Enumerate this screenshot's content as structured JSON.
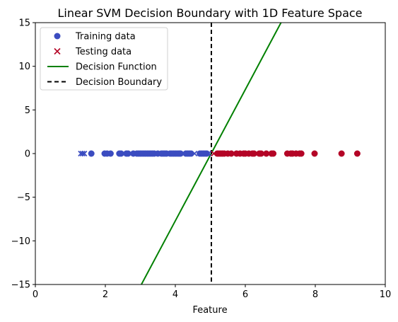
{
  "chart_data": {
    "type": "scatter",
    "title": "Linear SVM Decision Boundary with 1D Feature Space",
    "xlabel": "Feature",
    "ylabel": "",
    "xlim": [
      0,
      10
    ],
    "ylim": [
      -15,
      15
    ],
    "xticks": [
      0,
      2,
      4,
      6,
      8,
      10
    ],
    "xtick_labels": [
      "0",
      "2",
      "4",
      "6",
      "8",
      "10"
    ],
    "yticks": [
      -15,
      -10,
      -5,
      0,
      5,
      10,
      15
    ],
    "ytick_labels": [
      "−15",
      "−10",
      "−5",
      "0",
      "5",
      "10",
      "15"
    ],
    "grid": false,
    "legend": {
      "placement": "upper-left",
      "entries": [
        {
          "label": "Training data",
          "marker": "circle",
          "color": "#3b4cc0"
        },
        {
          "label": "Testing data",
          "marker": "x",
          "color": "#b40426"
        },
        {
          "label": "Decision Function",
          "marker": "line",
          "color": "#008000"
        },
        {
          "label": "Decision Boundary",
          "marker": "dashed-line",
          "color": "#000000"
        }
      ]
    },
    "colors": {
      "class0": "#3b4cc0",
      "class1": "#b40426",
      "decision_function": "#008000",
      "decision_boundary": "#000000"
    },
    "series": [
      {
        "name": "Training data",
        "marker": "circle",
        "points": [
          {
            "x": 1.6,
            "y": 0,
            "cls": 0
          },
          {
            "x": 1.98,
            "y": 0,
            "cls": 0
          },
          {
            "x": 2.05,
            "y": 0,
            "cls": 0
          },
          {
            "x": 2.15,
            "y": 0,
            "cls": 0
          },
          {
            "x": 2.4,
            "y": 0,
            "cls": 0
          },
          {
            "x": 2.45,
            "y": 0,
            "cls": 0
          },
          {
            "x": 2.6,
            "y": 0,
            "cls": 0
          },
          {
            "x": 2.65,
            "y": 0,
            "cls": 0
          },
          {
            "x": 2.8,
            "y": 0,
            "cls": 0
          },
          {
            "x": 2.9,
            "y": 0,
            "cls": 0
          },
          {
            "x": 2.95,
            "y": 0,
            "cls": 0
          },
          {
            "x": 3.0,
            "y": 0,
            "cls": 0
          },
          {
            "x": 3.05,
            "y": 0,
            "cls": 0
          },
          {
            "x": 3.1,
            "y": 0,
            "cls": 0
          },
          {
            "x": 3.15,
            "y": 0,
            "cls": 0
          },
          {
            "x": 3.2,
            "y": 0,
            "cls": 0
          },
          {
            "x": 3.25,
            "y": 0,
            "cls": 0
          },
          {
            "x": 3.3,
            "y": 0,
            "cls": 0
          },
          {
            "x": 3.35,
            "y": 0,
            "cls": 0
          },
          {
            "x": 3.4,
            "y": 0,
            "cls": 0
          },
          {
            "x": 3.5,
            "y": 0,
            "cls": 0
          },
          {
            "x": 3.6,
            "y": 0,
            "cls": 0
          },
          {
            "x": 3.65,
            "y": 0,
            "cls": 0
          },
          {
            "x": 3.7,
            "y": 0,
            "cls": 0
          },
          {
            "x": 3.75,
            "y": 0,
            "cls": 0
          },
          {
            "x": 3.85,
            "y": 0,
            "cls": 0
          },
          {
            "x": 3.9,
            "y": 0,
            "cls": 0
          },
          {
            "x": 3.95,
            "y": 0,
            "cls": 0
          },
          {
            "x": 4.0,
            "y": 0,
            "cls": 0
          },
          {
            "x": 4.05,
            "y": 0,
            "cls": 0
          },
          {
            "x": 4.1,
            "y": 0,
            "cls": 0
          },
          {
            "x": 4.15,
            "y": 0,
            "cls": 0
          },
          {
            "x": 4.3,
            "y": 0,
            "cls": 0
          },
          {
            "x": 4.35,
            "y": 0,
            "cls": 0
          },
          {
            "x": 4.4,
            "y": 0,
            "cls": 0
          },
          {
            "x": 4.45,
            "y": 0,
            "cls": 0
          },
          {
            "x": 4.7,
            "y": 0,
            "cls": 0
          },
          {
            "x": 4.75,
            "y": 0,
            "cls": 0
          },
          {
            "x": 4.8,
            "y": 0,
            "cls": 0
          },
          {
            "x": 4.85,
            "y": 0,
            "cls": 0
          },
          {
            "x": 4.9,
            "y": 0,
            "cls": 0
          },
          {
            "x": 5.2,
            "y": 0,
            "cls": 1
          },
          {
            "x": 5.25,
            "y": 0,
            "cls": 1
          },
          {
            "x": 5.3,
            "y": 0,
            "cls": 1
          },
          {
            "x": 5.35,
            "y": 0,
            "cls": 1
          },
          {
            "x": 5.4,
            "y": 0,
            "cls": 1
          },
          {
            "x": 5.5,
            "y": 0,
            "cls": 1
          },
          {
            "x": 5.6,
            "y": 0,
            "cls": 1
          },
          {
            "x": 5.75,
            "y": 0,
            "cls": 1
          },
          {
            "x": 5.85,
            "y": 0,
            "cls": 1
          },
          {
            "x": 5.95,
            "y": 0,
            "cls": 1
          },
          {
            "x": 6.0,
            "y": 0,
            "cls": 1
          },
          {
            "x": 6.1,
            "y": 0,
            "cls": 1
          },
          {
            "x": 6.2,
            "y": 0,
            "cls": 1
          },
          {
            "x": 6.25,
            "y": 0,
            "cls": 1
          },
          {
            "x": 6.4,
            "y": 0,
            "cls": 1
          },
          {
            "x": 6.45,
            "y": 0,
            "cls": 1
          },
          {
            "x": 6.6,
            "y": 0,
            "cls": 1
          },
          {
            "x": 6.75,
            "y": 0,
            "cls": 1
          },
          {
            "x": 6.8,
            "y": 0,
            "cls": 1
          },
          {
            "x": 7.2,
            "y": 0,
            "cls": 1
          },
          {
            "x": 7.3,
            "y": 0,
            "cls": 1
          },
          {
            "x": 7.35,
            "y": 0,
            "cls": 1
          },
          {
            "x": 7.45,
            "y": 0,
            "cls": 1
          },
          {
            "x": 7.55,
            "y": 0,
            "cls": 1
          },
          {
            "x": 7.6,
            "y": 0,
            "cls": 1
          },
          {
            "x": 7.98,
            "y": 0,
            "cls": 1
          },
          {
            "x": 8.75,
            "y": 0,
            "cls": 1
          },
          {
            "x": 9.2,
            "y": 0,
            "cls": 1
          }
        ]
      },
      {
        "name": "Testing data",
        "marker": "x",
        "points": [
          {
            "x": 1.3,
            "y": 0,
            "cls": 0
          },
          {
            "x": 1.35,
            "y": 0,
            "cls": 0
          },
          {
            "x": 1.4,
            "y": 0,
            "cls": 0
          },
          {
            "x": 2.95,
            "y": 0,
            "cls": 0
          },
          {
            "x": 3.2,
            "y": 0,
            "cls": 0
          },
          {
            "x": 3.45,
            "y": 0,
            "cls": 0
          },
          {
            "x": 3.8,
            "y": 0,
            "cls": 0
          },
          {
            "x": 4.55,
            "y": 0,
            "cls": 0
          },
          {
            "x": 4.95,
            "y": 0,
            "cls": 0
          },
          {
            "x": 5.1,
            "y": 0,
            "cls": 1
          },
          {
            "x": 5.65,
            "y": 0,
            "cls": 1
          },
          {
            "x": 6.3,
            "y": 0,
            "cls": 1
          },
          {
            "x": 6.55,
            "y": 0,
            "cls": 1
          },
          {
            "x": 7.4,
            "y": 0,
            "cls": 1
          }
        ]
      },
      {
        "name": "Decision Function",
        "marker": "line",
        "points": [
          {
            "x": 3.03,
            "y": -15
          },
          {
            "x": 7.02,
            "y": 15
          }
        ]
      },
      {
        "name": "Decision Boundary",
        "marker": "dashed-line",
        "x_value": 5.03
      }
    ]
  }
}
